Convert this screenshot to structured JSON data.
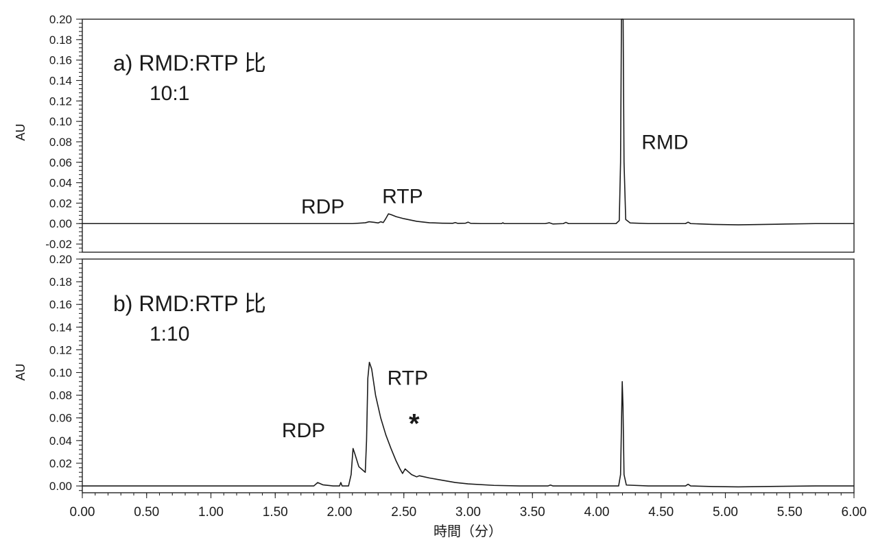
{
  "chart_data": {
    "type": "line",
    "xlabel": "時間（分）",
    "xlim": [
      0,
      6
    ],
    "x_ticks": [
      "0.00",
      "0.50",
      "1.00",
      "1.50",
      "2.00",
      "2.50",
      "3.00",
      "3.50",
      "4.00",
      "4.50",
      "5.00",
      "5.50",
      "6.00"
    ],
    "panels": [
      {
        "label": "a)  RMD:RTP 比",
        "ratio": "10:1",
        "ylabel": "AU",
        "ylim": [
          -0.028,
          0.2
        ],
        "y_ticks": [
          "0.20",
          "0.18",
          "0.16",
          "0.14",
          "0.12",
          "0.10",
          "0.08",
          "0.06",
          "0.04",
          "0.02",
          "0.00",
          "-0.02"
        ],
        "annotations": [
          {
            "text": "RDP",
            "x": 1.87,
            "y": 0.01
          },
          {
            "text": "RTP",
            "x": 2.49,
            "y": 0.02
          },
          {
            "text": "RMD",
            "x": 4.53,
            "y": 0.073
          }
        ],
        "points": [
          [
            0.0,
            0.0
          ],
          [
            1.5,
            0.0
          ],
          [
            2.1,
            0.0
          ],
          [
            2.2,
            0.0008
          ],
          [
            2.23,
            0.0018
          ],
          [
            2.27,
            0.0012
          ],
          [
            2.3,
            0.0006
          ],
          [
            2.32,
            0.0018
          ],
          [
            2.34,
            0.001
          ],
          [
            2.36,
            0.005
          ],
          [
            2.38,
            0.0095
          ],
          [
            2.4,
            0.0088
          ],
          [
            2.44,
            0.0068
          ],
          [
            2.5,
            0.0048
          ],
          [
            2.6,
            0.0022
          ],
          [
            2.7,
            0.0008
          ],
          [
            2.8,
            0.0004
          ],
          [
            2.88,
            0.0003
          ],
          [
            2.9,
            0.001
          ],
          [
            2.92,
            0.0002
          ],
          [
            2.98,
            0.0004
          ],
          [
            3.0,
            0.0014
          ],
          [
            3.02,
            0.0002
          ],
          [
            3.1,
            0.0
          ],
          [
            3.26,
            0.0
          ],
          [
            3.27,
            0.0008
          ],
          [
            3.28,
            0.0
          ],
          [
            3.6,
            0.0
          ],
          [
            3.63,
            0.0008
          ],
          [
            3.66,
            -0.0004
          ],
          [
            3.74,
            0.0
          ],
          [
            3.76,
            0.0012
          ],
          [
            3.78,
            0.0
          ],
          [
            4.1,
            0.0
          ],
          [
            4.15,
            0.0
          ],
          [
            4.175,
            0.003
          ],
          [
            4.185,
            0.06
          ],
          [
            4.192,
            0.2
          ],
          [
            4.205,
            0.2
          ],
          [
            4.212,
            0.06
          ],
          [
            4.225,
            0.004
          ],
          [
            4.26,
            0.0006
          ],
          [
            4.4,
            0.0
          ],
          [
            4.69,
            0.0
          ],
          [
            4.71,
            0.0014
          ],
          [
            4.73,
            0.0
          ],
          [
            4.9,
            -0.0008
          ],
          [
            5.1,
            -0.0012
          ],
          [
            5.4,
            -0.0006
          ],
          [
            5.7,
            0.0
          ],
          [
            6.0,
            0.0
          ]
        ]
      },
      {
        "label": "b)  RMD:RTP 比",
        "ratio": "1:10",
        "ylabel": "AU",
        "ylim": [
          -0.006,
          0.2
        ],
        "y_ticks": [
          "0.20",
          "0.18",
          "0.16",
          "0.14",
          "0.12",
          "0.10",
          "0.08",
          "0.06",
          "0.04",
          "0.02",
          "0.00"
        ],
        "annotations": [
          {
            "text": "RDP",
            "x": 1.72,
            "y": 0.043
          },
          {
            "text": "RTP",
            "x": 2.53,
            "y": 0.089
          },
          {
            "text": "*",
            "x": 2.58,
            "y": 0.047
          }
        ],
        "points": [
          [
            0.0,
            0.0
          ],
          [
            1.5,
            0.0
          ],
          [
            1.8,
            0.0
          ],
          [
            1.83,
            0.003
          ],
          [
            1.87,
            0.001
          ],
          [
            1.95,
            0.0
          ],
          [
            2.0,
            0.0
          ],
          [
            2.01,
            0.003
          ],
          [
            2.02,
            0.0
          ],
          [
            2.07,
            0.0
          ],
          [
            2.09,
            0.01
          ],
          [
            2.105,
            0.033
          ],
          [
            2.12,
            0.028
          ],
          [
            2.15,
            0.017
          ],
          [
            2.18,
            0.014
          ],
          [
            2.2,
            0.012
          ],
          [
            2.21,
            0.04
          ],
          [
            2.22,
            0.095
          ],
          [
            2.232,
            0.109
          ],
          [
            2.25,
            0.103
          ],
          [
            2.28,
            0.08
          ],
          [
            2.32,
            0.06
          ],
          [
            2.36,
            0.045
          ],
          [
            2.4,
            0.033
          ],
          [
            2.44,
            0.022
          ],
          [
            2.47,
            0.015
          ],
          [
            2.49,
            0.011
          ],
          [
            2.51,
            0.015
          ],
          [
            2.53,
            0.013
          ],
          [
            2.56,
            0.01
          ],
          [
            2.6,
            0.008
          ],
          [
            2.62,
            0.009
          ],
          [
            2.7,
            0.007
          ],
          [
            2.8,
            0.005
          ],
          [
            2.9,
            0.003
          ],
          [
            3.0,
            0.0018
          ],
          [
            3.2,
            0.0005
          ],
          [
            3.4,
            0.0
          ],
          [
            3.62,
            0.0
          ],
          [
            3.64,
            0.0008
          ],
          [
            3.66,
            0.0
          ],
          [
            4.1,
            0.0
          ],
          [
            4.17,
            0.0
          ],
          [
            4.185,
            0.01
          ],
          [
            4.193,
            0.06
          ],
          [
            4.198,
            0.092
          ],
          [
            4.204,
            0.07
          ],
          [
            4.212,
            0.01
          ],
          [
            4.23,
            0.0008
          ],
          [
            4.4,
            0.0
          ],
          [
            4.69,
            0.0
          ],
          [
            4.71,
            0.0015
          ],
          [
            4.73,
            0.0
          ],
          [
            4.9,
            -0.0005
          ],
          [
            5.1,
            -0.0008
          ],
          [
            5.4,
            -0.0004
          ],
          [
            5.7,
            0.0
          ],
          [
            6.0,
            0.0
          ]
        ]
      }
    ]
  }
}
